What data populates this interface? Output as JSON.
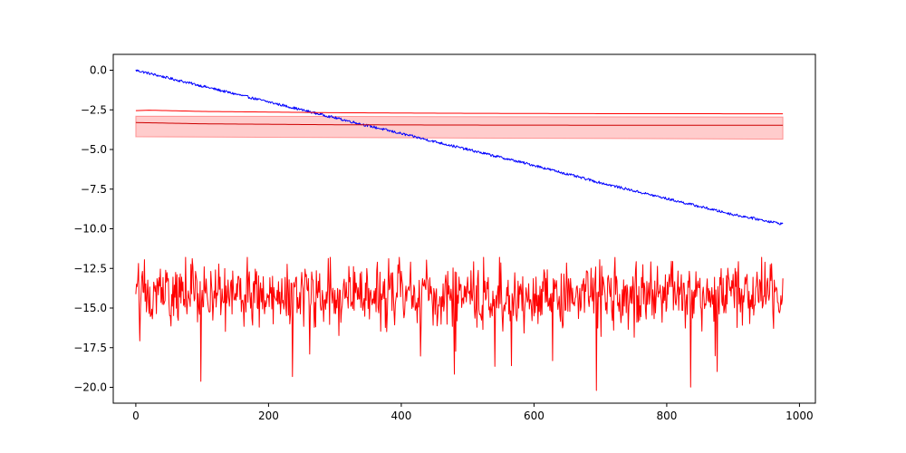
{
  "chart_data": {
    "type": "line",
    "title": "",
    "xlabel": "",
    "ylabel": "",
    "xlim": [
      -34,
      1024
    ],
    "ylim": [
      -21.0,
      1.0
    ],
    "grid": false,
    "x_ticks": [
      0,
      200,
      400,
      600,
      800,
      1000
    ],
    "x_tick_labels": [
      "0",
      "200",
      "400",
      "600",
      "800",
      "1000"
    ],
    "y_ticks": [
      0.0,
      -2.5,
      -5.0,
      -7.5,
      -10.0,
      -12.5,
      -15.0,
      -17.5,
      -20.0
    ],
    "y_tick_labels": [
      "0.0",
      "−2.5",
      "−5.0",
      "−7.5",
      "−10.0",
      "−12.5",
      "−15.0",
      "−17.5",
      "−20.0"
    ],
    "series": [
      {
        "color": "#0000ff",
        "x": [
          0,
          100,
          200,
          300,
          400,
          500,
          600,
          700,
          800,
          900,
          975
        ],
        "y": [
          0.0,
          -1.0,
          -2.0,
          -3.0,
          -4.0,
          -5.0,
          -6.0,
          -7.1,
          -8.1,
          -9.1,
          -9.7
        ],
        "noise_amplitude": 0.08
      },
      {
        "color": "#ff0000",
        "x": [
          0,
          20,
          100,
          300,
          500,
          700,
          975
        ],
        "y": [
          -2.55,
          -2.52,
          -2.6,
          -2.68,
          -2.72,
          -2.74,
          -2.75
        ]
      },
      {
        "color": "#cc0000",
        "x": [
          0,
          100,
          300,
          500,
          700,
          975
        ],
        "y": [
          -3.3,
          -3.38,
          -3.44,
          -3.46,
          -3.47,
          -3.47
        ]
      },
      {
        "color": "#ff0000",
        "x": [
          0,
          100,
          200,
          300,
          400,
          500,
          600,
          700,
          800,
          900,
          975
        ],
        "y": [
          -14.2,
          -14.1,
          -14.3,
          -14.2,
          -14.3,
          -14.2,
          -14.4,
          -14.2,
          -14.1,
          -14.3,
          -14.2
        ],
        "noise_amplitude": 1.2,
        "approx_min": -20.2,
        "approx_max": -11.8
      }
    ],
    "band": {
      "color": "#ff0000",
      "opacity": 0.2,
      "x": [
        0,
        975
      ],
      "upper": [
        -2.9,
        -2.95
      ],
      "lower": [
        -4.2,
        -4.35
      ]
    }
  }
}
